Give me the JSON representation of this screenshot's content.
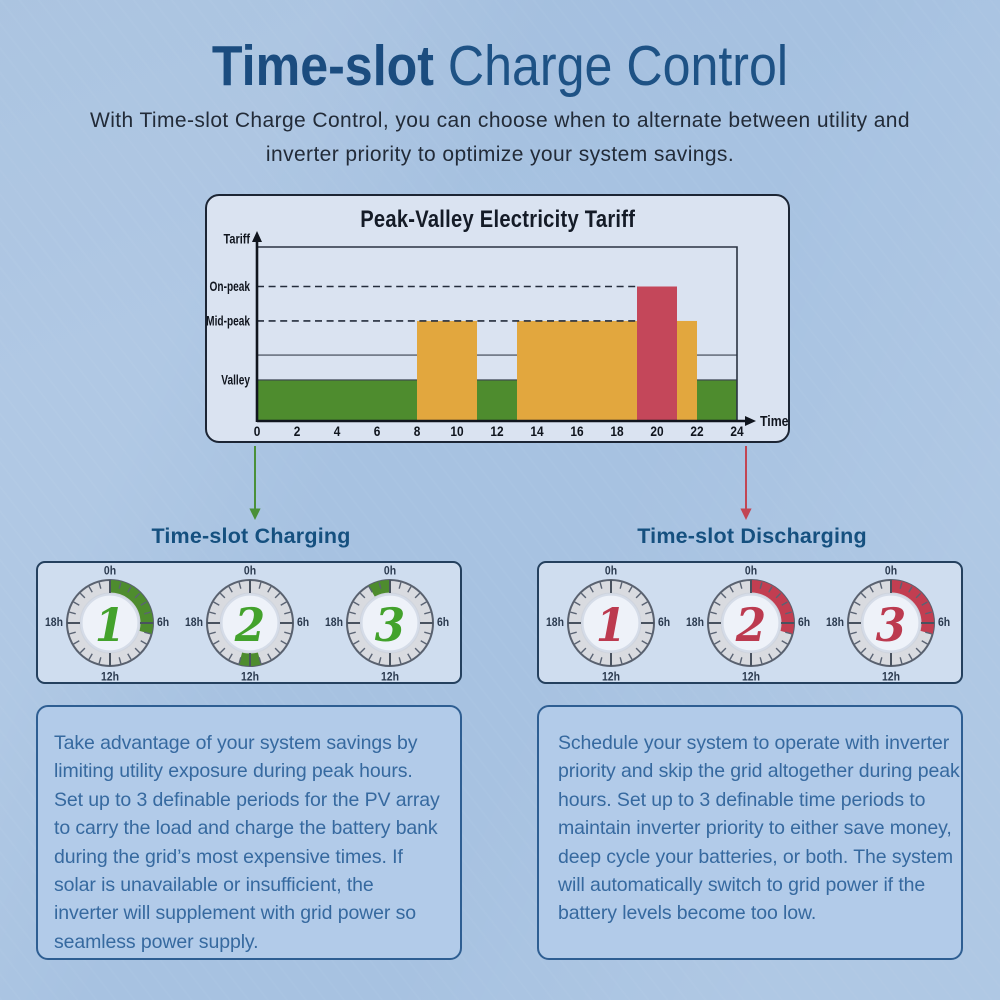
{
  "header": {
    "title_bold": "Time-slot",
    "title_rest": " Charge Control",
    "subtitle_line1": "With Time-slot Charge Control, you can choose when to alternate between utility and",
    "subtitle_line2": "inverter priority to optimize your system savings."
  },
  "chart_data": {
    "type": "bar",
    "title": "Peak-Valley Electricity Tariff",
    "xlabel": "Time",
    "ylabel": "Tariff",
    "xlim": [
      0,
      24
    ],
    "x_ticks": [
      0,
      2,
      4,
      6,
      8,
      10,
      12,
      14,
      16,
      18,
      20,
      22,
      24
    ],
    "grid": "partial",
    "y_levels": [
      {
        "key": "valley",
        "label": "Valley",
        "height": 0.236,
        "gridline": "solid"
      },
      {
        "key": "flat",
        "label": "",
        "height": 0.379,
        "gridline": "solid"
      },
      {
        "key": "mid_peak",
        "label": "Mid-peak",
        "height": 0.575,
        "gridline": "dashed"
      },
      {
        "key": "on_peak",
        "label": "On-peak",
        "height": 0.773,
        "gridline": "dashed"
      }
    ],
    "gridline_end_hour": 19,
    "tariff_periods": [
      {
        "start_hour": 0,
        "end_hour": 8,
        "level": "valley"
      },
      {
        "start_hour": 8,
        "end_hour": 11,
        "level": "mid_peak"
      },
      {
        "start_hour": 11,
        "end_hour": 13,
        "level": "valley"
      },
      {
        "start_hour": 13,
        "end_hour": 22,
        "level": "mid_peak"
      },
      {
        "start_hour": 19,
        "end_hour": 21,
        "level": "on_peak"
      },
      {
        "start_hour": 22,
        "end_hour": 24,
        "level": "valley"
      }
    ],
    "level_colors": {
      "valley": "#4e8c2e",
      "mid_peak": "#e2a73e",
      "on_peak": "#c4475a"
    }
  },
  "charging": {
    "heading": "Time-slot Charging",
    "arrow_color": "#4a9038",
    "arc_color": "#4e8c2e",
    "number_color": "#43a22c",
    "dial_labels": {
      "top": "0h",
      "right": "6h",
      "bottom": "12h",
      "left": "18h"
    },
    "clocks": [
      {
        "number": "1",
        "period_start_hour": 0,
        "period_end_hour": 7
      },
      {
        "number": "2",
        "period_start_hour": 11,
        "period_end_hour": 13
      },
      {
        "number": "3",
        "period_start_hour": 22,
        "period_end_hour": 24
      }
    ]
  },
  "discharging": {
    "heading": "Time-slot Discharging",
    "arrow_color": "#c24553",
    "arc_color": "#c23e51",
    "number_color": "#bc3a4f",
    "dial_labels": {
      "top": "0h",
      "right": "6h",
      "bottom": "12h",
      "left": "18h"
    },
    "clocks": [
      {
        "number": "1",
        "period_start_hour": null,
        "period_end_hour": null
      },
      {
        "number": "2",
        "period_start_hour": 0,
        "period_end_hour": 7
      },
      {
        "number": "3",
        "period_start_hour": 0,
        "period_end_hour": 7
      }
    ]
  },
  "left_box": {
    "lines": [
      "Take advantage of your system savings by",
      "limiting utility exposure during peak hours.",
      "Set up to 3 definable periods for the PV array",
      "to carry the load and charge the battery bank",
      "during the grid’s most expensive times. If",
      "solar is unavailable or insufficient, the",
      "inverter will supplement with grid power so",
      "seamless power supply."
    ]
  },
  "right_box": {
    "lines": [
      "Schedule your system to operate with inverter",
      "priority and skip the grid altogether during peak",
      "hours. Set up to 3 definable time periods to",
      "maintain inverter priority to either save money,",
      "deep cycle your batteries, or both. The system",
      "will automatically switch to grid power if the",
      "battery levels become too low."
    ]
  },
  "colors": {
    "background": "#a9c4e2",
    "title_navy": "#1b4c7f",
    "heading_blue": "#15507f",
    "body_text_blue": "#36699f",
    "panel_fill": "#dae3f1",
    "clock_ring": "#d9dbe0",
    "axis_dark": "#10151e"
  }
}
